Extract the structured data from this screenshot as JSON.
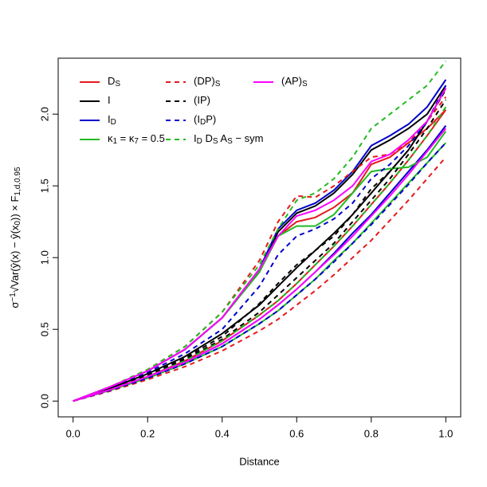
{
  "chart_data": {
    "type": "line",
    "xlabel": "Distance",
    "ylabel_parts": [
      {
        "text": "σ"
      },
      {
        "text": "−1",
        "sup": true
      },
      {
        "text": "√"
      },
      {
        "text": "Var(ŷ(x) − ŷ(x"
      },
      {
        "text": "0",
        "sub": true
      },
      {
        "text": ")) × F"
      },
      {
        "text": "1,d,0.95",
        "sub": true
      }
    ],
    "x": [
      0,
      0.1,
      0.2,
      0.3,
      0.4,
      0.5,
      0.55,
      0.6,
      0.65,
      0.7,
      0.75,
      0.8,
      0.85,
      0.9,
      0.95,
      1.0
    ],
    "xlim": [
      -0.04,
      1.04
    ],
    "ylim": [
      -0.11,
      2.39
    ],
    "xticks": [
      {
        "value": 0,
        "label": "0.0"
      },
      {
        "value": 0.2,
        "label": "0.2"
      },
      {
        "value": 0.4,
        "label": "0.4"
      },
      {
        "value": 0.6,
        "label": "0.6"
      },
      {
        "value": 0.8,
        "label": "0.8"
      },
      {
        "value": 1.0,
        "label": "1.0"
      }
    ],
    "yticks": [
      {
        "value": 0,
        "label": "0.0"
      },
      {
        "value": 0.5,
        "label": "0.5"
      },
      {
        "value": 1.0,
        "label": "1.0"
      },
      {
        "value": 1.5,
        "label": "1.5"
      },
      {
        "value": 2.0,
        "label": "2.0"
      }
    ],
    "series": [
      {
        "name_parts": [
          {
            "text": "D"
          },
          {
            "text": "S",
            "sub": true
          }
        ],
        "color": "#e41a1c",
        "dashed": false,
        "upper": [
          0,
          0.1,
          0.21,
          0.36,
          0.58,
          0.92,
          1.15,
          1.25,
          1.28,
          1.35,
          1.45,
          1.65,
          1.7,
          1.8,
          1.9,
          2.03
        ],
        "lower": [
          0,
          0.08,
          0.17,
          0.28,
          0.42,
          0.6,
          0.7,
          0.82,
          0.95,
          1.08,
          1.22,
          1.37,
          1.52,
          1.68,
          1.85,
          2.03
        ]
      },
      {
        "name_parts": [
          {
            "text": "I"
          }
        ],
        "color": "#000000",
        "dashed": false,
        "upper": [
          0,
          0.1,
          0.21,
          0.36,
          0.58,
          0.9,
          1.18,
          1.31,
          1.36,
          1.45,
          1.58,
          1.75,
          1.82,
          1.9,
          2.0,
          2.2
        ],
        "lower": [
          0,
          0.09,
          0.19,
          0.31,
          0.47,
          0.67,
          0.8,
          0.93,
          1.05,
          1.17,
          1.3,
          1.45,
          1.6,
          1.75,
          1.95,
          2.18
        ]
      },
      {
        "name_parts": [
          {
            "text": "I"
          },
          {
            "text": "D",
            "sub": true
          }
        ],
        "color": "#0000cc",
        "dashed": false,
        "upper": [
          0,
          0.1,
          0.21,
          0.36,
          0.58,
          0.92,
          1.2,
          1.33,
          1.38,
          1.47,
          1.6,
          1.78,
          1.85,
          1.93,
          2.05,
          2.24
        ],
        "lower": [
          0,
          0.08,
          0.17,
          0.27,
          0.4,
          0.57,
          0.67,
          0.78,
          0.9,
          1.03,
          1.17,
          1.3,
          1.45,
          1.6,
          1.75,
          1.92
        ]
      },
      {
        "name_parts": [
          {
            "text": "κ"
          },
          {
            "text": "1",
            "sub": true
          },
          {
            "text": " =  κ"
          },
          {
            "text": "7",
            "sub": true
          },
          {
            "text": " = 0.5"
          }
        ],
        "color": "#22bb22",
        "dashed": false,
        "upper": [
          0,
          0.1,
          0.21,
          0.36,
          0.58,
          0.9,
          1.15,
          1.22,
          1.22,
          1.3,
          1.45,
          1.6,
          1.62,
          1.63,
          1.7,
          1.88
        ],
        "lower": [
          0,
          0.075,
          0.16,
          0.26,
          0.38,
          0.54,
          0.63,
          0.74,
          0.85,
          0.98,
          1.1,
          1.24,
          1.38,
          1.52,
          1.66,
          1.8
        ]
      },
      {
        "name_parts": [
          {
            "text": "(DP)"
          },
          {
            "text": "S",
            "sub": true
          }
        ],
        "color": "#e41a1c",
        "dashed": true,
        "upper": [
          0,
          0.1,
          0.22,
          0.38,
          0.62,
          0.98,
          1.25,
          1.43,
          1.42,
          1.5,
          1.6,
          1.7,
          1.72,
          1.8,
          1.95,
          2.12
        ],
        "lower": [
          0,
          0.07,
          0.15,
          0.24,
          0.35,
          0.49,
          0.57,
          0.67,
          0.77,
          0.88,
          1.0,
          1.12,
          1.26,
          1.4,
          1.55,
          1.7
        ]
      },
      {
        "name_parts": [
          {
            "text": "(IP)"
          }
        ],
        "color": "#000000",
        "dashed": true,
        "upper": [
          0,
          0.09,
          0.19,
          0.3,
          0.45,
          0.68,
          0.82,
          0.95,
          1.05,
          1.15,
          1.3,
          1.48,
          1.6,
          1.75,
          1.95,
          2.17
        ],
        "lower": [
          0,
          0.08,
          0.18,
          0.29,
          0.43,
          0.62,
          0.74,
          0.86,
          0.98,
          1.1,
          1.25,
          1.4,
          1.55,
          1.72,
          1.9,
          2.1
        ]
      },
      {
        "name_parts": [
          {
            "text": "(I"
          },
          {
            "text": "D",
            "sub": true
          },
          {
            "text": "P)"
          }
        ],
        "color": "#0000cc",
        "dashed": true,
        "upper": [
          0,
          0.1,
          0.2,
          0.33,
          0.5,
          0.8,
          1.02,
          1.15,
          1.2,
          1.27,
          1.38,
          1.55,
          1.65,
          1.78,
          1.95,
          2.2
        ],
        "lower": [
          0,
          0.075,
          0.16,
          0.26,
          0.38,
          0.54,
          0.63,
          0.74,
          0.85,
          0.97,
          1.1,
          1.23,
          1.37,
          1.51,
          1.66,
          1.8
        ]
      },
      {
        "name_parts": [
          {
            "text": "I"
          },
          {
            "text": "D",
            "sub": true
          },
          {
            "text": " D"
          },
          {
            "text": "S",
            "sub": true
          },
          {
            "text": " A"
          },
          {
            "text": "S",
            "sub": true
          },
          {
            "text": " − sym"
          }
        ],
        "color": "#22bb22",
        "dashed": true,
        "upper": [
          0,
          0.1,
          0.22,
          0.38,
          0.62,
          0.95,
          1.2,
          1.4,
          1.45,
          1.55,
          1.7,
          1.9,
          2.0,
          2.1,
          2.2,
          2.37
        ],
        "lower": [
          0,
          0.08,
          0.17,
          0.28,
          0.42,
          0.6,
          0.7,
          0.82,
          0.95,
          1.08,
          1.22,
          1.37,
          1.52,
          1.68,
          1.85,
          2.05
        ]
      },
      {
        "name_parts": [
          {
            "text": "(AP)"
          },
          {
            "text": "S",
            "sub": true
          }
        ],
        "color": "#ff00ff",
        "dashed": false,
        "upper": [
          0,
          0.1,
          0.21,
          0.36,
          0.58,
          0.92,
          1.15,
          1.29,
          1.33,
          1.4,
          1.5,
          1.67,
          1.72,
          1.82,
          1.95,
          2.18
        ],
        "lower": [
          0,
          0.08,
          0.17,
          0.27,
          0.4,
          0.57,
          0.67,
          0.78,
          0.9,
          1.02,
          1.15,
          1.29,
          1.43,
          1.58,
          1.74,
          1.9
        ]
      }
    ]
  }
}
